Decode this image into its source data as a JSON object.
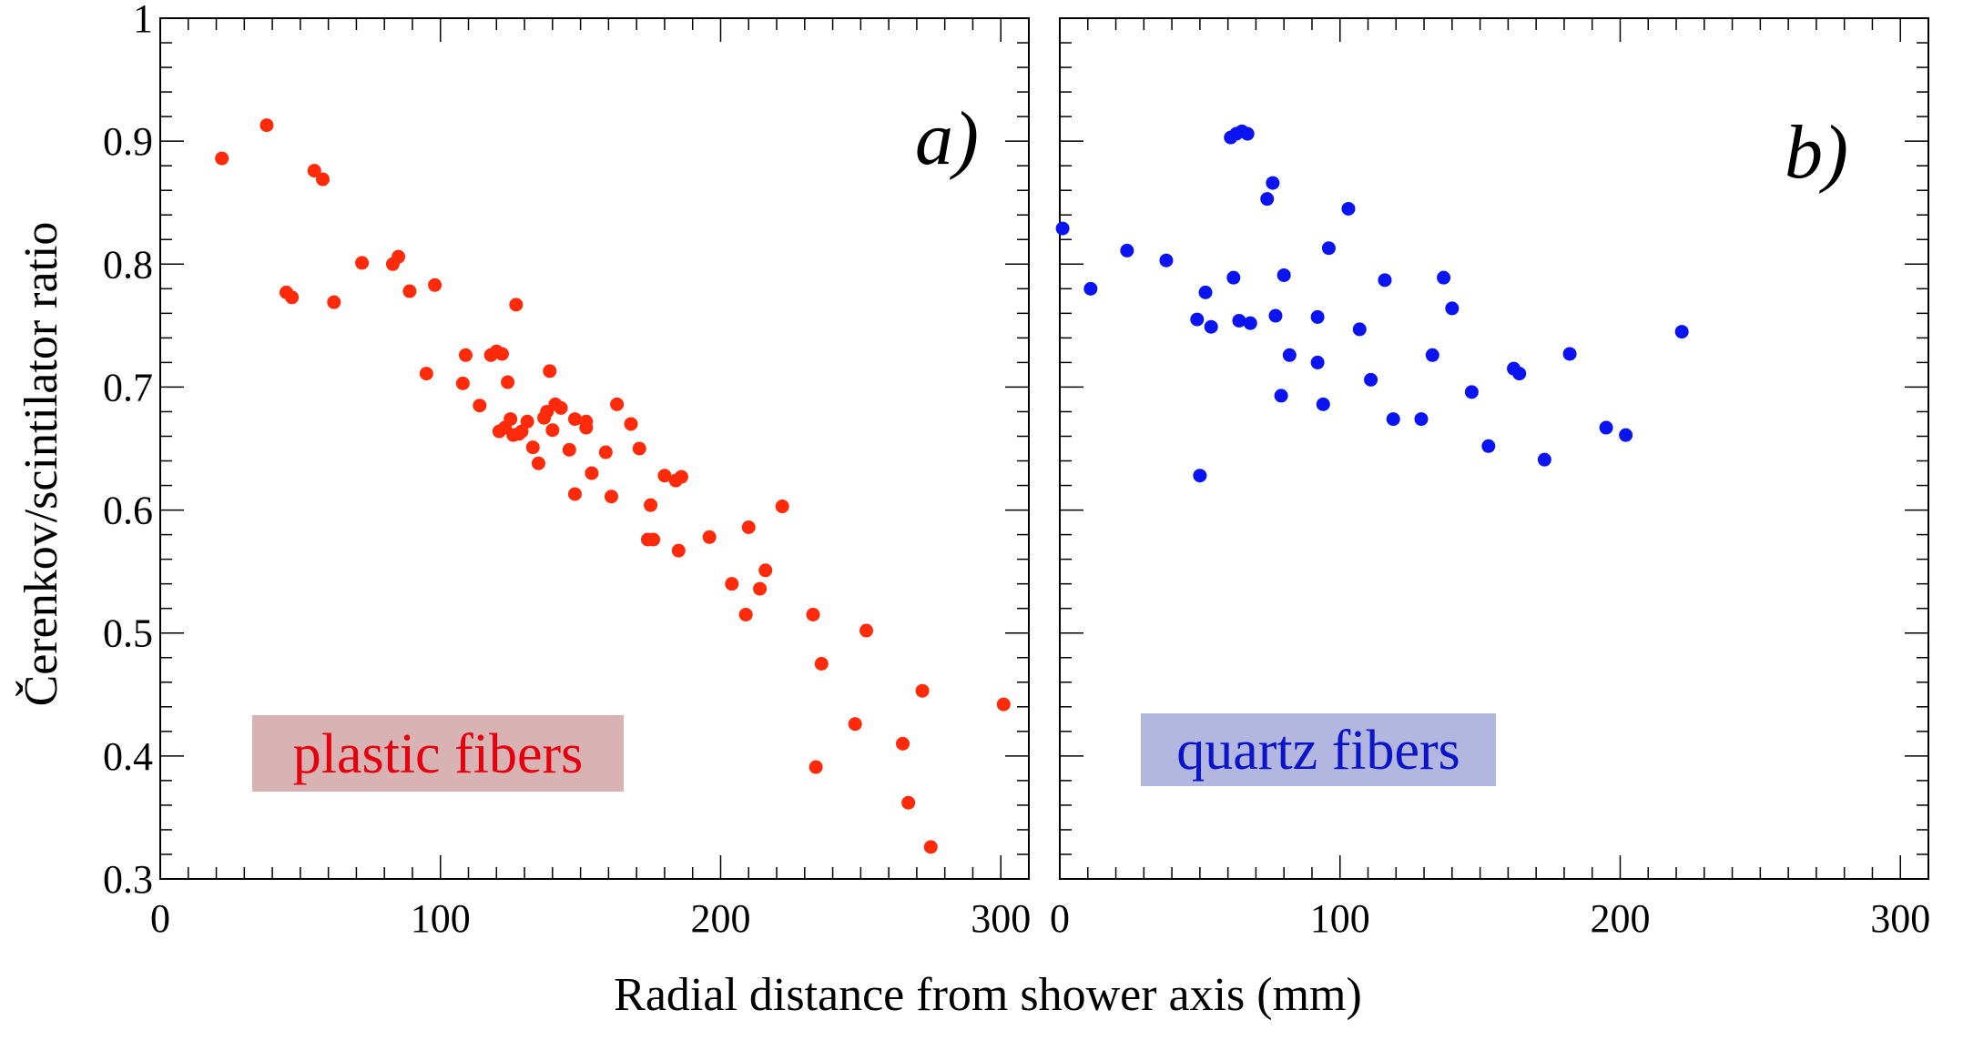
{
  "chart_data": [
    {
      "type": "scatter",
      "panel_tag": "a)",
      "legend_text": "plastic fibers",
      "legend_placement": "bottom-left",
      "colors": {
        "marker": "#ff2a0a",
        "label_text": "#e4000c",
        "label_box": "#d9b3b3"
      },
      "xlim": [
        0,
        310
      ],
      "ylim": [
        0.3,
        1.0
      ],
      "xticks": [
        "0",
        "100",
        "200",
        "300"
      ],
      "yticks": [
        "0.3",
        "0.4",
        "0.5",
        "0.6",
        "0.7",
        "0.8",
        "0.9",
        "1"
      ],
      "grid": false,
      "points": [
        [
          22,
          0.886
        ],
        [
          38,
          0.913
        ],
        [
          45,
          0.777
        ],
        [
          47,
          0.773
        ],
        [
          55,
          0.876
        ],
        [
          58,
          0.869
        ],
        [
          62,
          0.769
        ],
        [
          72,
          0.801
        ],
        [
          83,
          0.8
        ],
        [
          85,
          0.806
        ],
        [
          89,
          0.778
        ],
        [
          95,
          0.711
        ],
        [
          98,
          0.783
        ],
        [
          108,
          0.703
        ],
        [
          109,
          0.726
        ],
        [
          114,
          0.685
        ],
        [
          118,
          0.726
        ],
        [
          120,
          0.729
        ],
        [
          121,
          0.664
        ],
        [
          122,
          0.727
        ],
        [
          123,
          0.667
        ],
        [
          124,
          0.704
        ],
        [
          125,
          0.674
        ],
        [
          126,
          0.661
        ],
        [
          127,
          0.767
        ],
        [
          128,
          0.662
        ],
        [
          129,
          0.664
        ],
        [
          131,
          0.672
        ],
        [
          133,
          0.651
        ],
        [
          135,
          0.638
        ],
        [
          137,
          0.675
        ],
        [
          138,
          0.68
        ],
        [
          139,
          0.713
        ],
        [
          140,
          0.665
        ],
        [
          141,
          0.686
        ],
        [
          143,
          0.683
        ],
        [
          146,
          0.649
        ],
        [
          148,
          0.674
        ],
        [
          148,
          0.613
        ],
        [
          152,
          0.667
        ],
        [
          152,
          0.672
        ],
        [
          154,
          0.63
        ],
        [
          159,
          0.647
        ],
        [
          161,
          0.611
        ],
        [
          163,
          0.686
        ],
        [
          168,
          0.67
        ],
        [
          171,
          0.65
        ],
        [
          174,
          0.576
        ],
        [
          175,
          0.604
        ],
        [
          176,
          0.576
        ],
        [
          180,
          0.628
        ],
        [
          184,
          0.624
        ],
        [
          185,
          0.567
        ],
        [
          186,
          0.627
        ],
        [
          196,
          0.578
        ],
        [
          204,
          0.54
        ],
        [
          209,
          0.515
        ],
        [
          210,
          0.586
        ],
        [
          214,
          0.536
        ],
        [
          216,
          0.551
        ],
        [
          222,
          0.603
        ],
        [
          233,
          0.515
        ],
        [
          234,
          0.391
        ],
        [
          236,
          0.475
        ],
        [
          248,
          0.426
        ],
        [
          252,
          0.502
        ],
        [
          265,
          0.41
        ],
        [
          267,
          0.362
        ],
        [
          272,
          0.453
        ],
        [
          275,
          0.326
        ],
        [
          301,
          0.442
        ]
      ]
    },
    {
      "type": "scatter",
      "panel_tag": "b)",
      "legend_text": "quartz fibers",
      "legend_placement": "bottom-left",
      "colors": {
        "marker": "#0a14f0",
        "label_text": "#0a14c8",
        "label_box": "#b3b6de"
      },
      "xlim": [
        0,
        310
      ],
      "ylim": [
        0.3,
        1.0
      ],
      "xticks": [
        "0",
        "100",
        "200",
        "300"
      ],
      "grid": false,
      "points": [
        [
          1,
          0.829
        ],
        [
          11,
          0.78
        ],
        [
          24,
          0.811
        ],
        [
          38,
          0.803
        ],
        [
          49,
          0.755
        ],
        [
          50,
          0.628
        ],
        [
          52,
          0.777
        ],
        [
          54,
          0.749
        ],
        [
          61,
          0.903
        ],
        [
          62,
          0.789
        ],
        [
          63,
          0.906
        ],
        [
          64,
          0.754
        ],
        [
          65,
          0.908
        ],
        [
          67,
          0.906
        ],
        [
          68,
          0.752
        ],
        [
          74,
          0.853
        ],
        [
          76,
          0.866
        ],
        [
          77,
          0.758
        ],
        [
          79,
          0.693
        ],
        [
          80,
          0.791
        ],
        [
          82,
          0.726
        ],
        [
          92,
          0.72
        ],
        [
          92,
          0.757
        ],
        [
          94,
          0.686
        ],
        [
          96,
          0.813
        ],
        [
          103,
          0.845
        ],
        [
          107,
          0.747
        ],
        [
          111,
          0.706
        ],
        [
          116,
          0.787
        ],
        [
          119,
          0.674
        ],
        [
          129,
          0.674
        ],
        [
          133,
          0.726
        ],
        [
          137,
          0.789
        ],
        [
          140,
          0.764
        ],
        [
          147,
          0.696
        ],
        [
          153,
          0.652
        ],
        [
          162,
          0.715
        ],
        [
          164,
          0.711
        ],
        [
          173,
          0.641
        ],
        [
          182,
          0.727
        ],
        [
          195,
          0.667
        ],
        [
          202,
          0.661
        ],
        [
          222,
          0.745
        ]
      ]
    }
  ],
  "axes": {
    "ylabel": "Čerenkov/scintilator ratio",
    "xlabel": "Radial distance from shower axis (mm)"
  }
}
